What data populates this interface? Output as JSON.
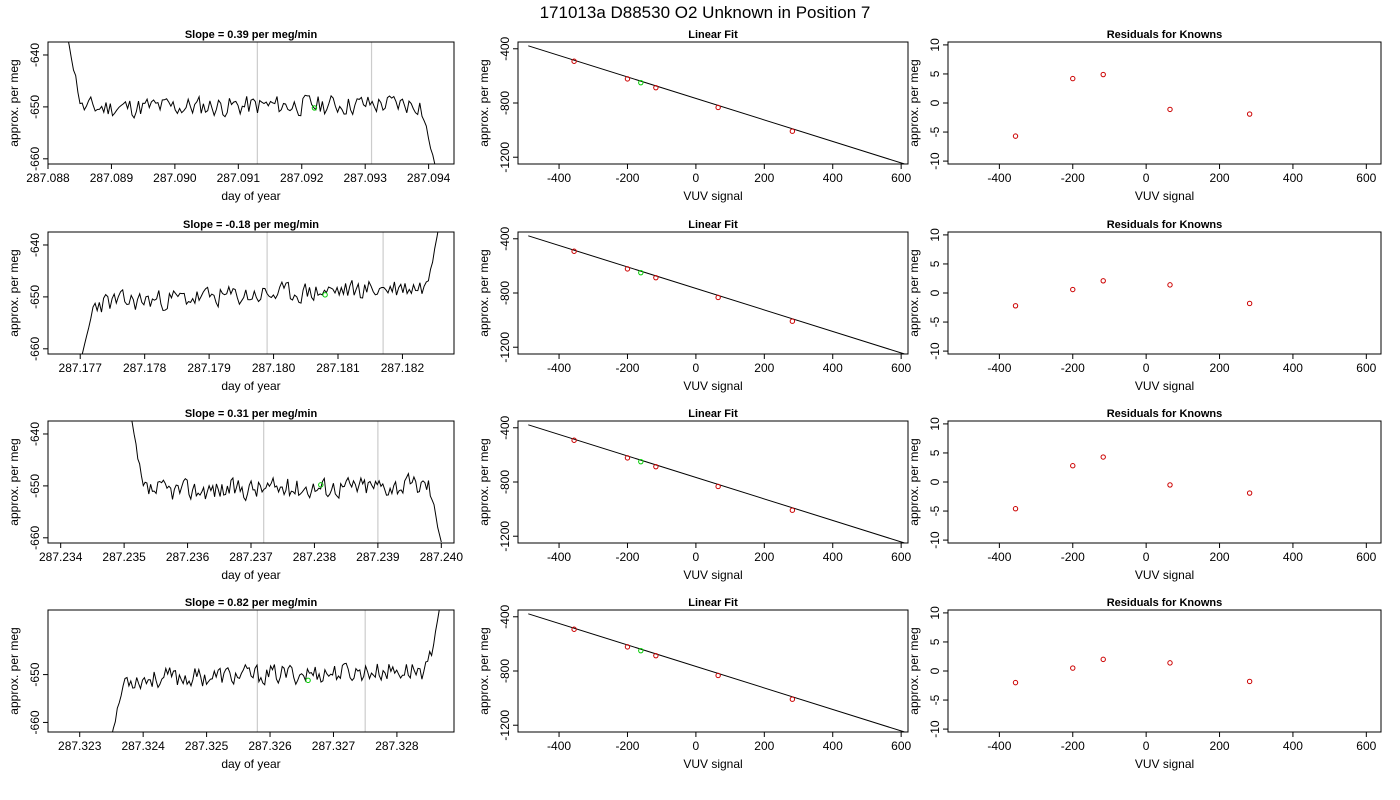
{
  "title": "171013a     D88530   O2 Unknown in Position  7",
  "colors": {
    "line": "#000000",
    "unknown_point": "#00cc00",
    "known_point": "#cc0000",
    "cycle_marker": "#cccccc"
  },
  "chart_data": [
    {
      "type": "line",
      "panel": "time-series-1",
      "title": "Slope =  0.39  per meg/min",
      "xlabel": "day of year",
      "ylabel": "approx. per meg",
      "xlim": [
        287.088,
        287.0944
      ],
      "ylim": [
        -661,
        -637.5
      ],
      "xticks": [
        "287.088",
        "287.089",
        "287.090",
        "287.091",
        "287.092",
        "287.093",
        "287.094"
      ],
      "yticks": [
        "-640",
        "-650",
        "-660"
      ],
      "cycle_markers_x": [
        287.0913,
        287.0931
      ],
      "unknown_point": {
        "x": 287.0922,
        "y": -650.2
      },
      "series": [
        {
          "x0": 287.0883,
          "x1": 287.0941,
          "start": -636,
          "end": -662,
          "level": -650.2,
          "noise": 2.4,
          "trend": 0.4,
          "seed": 11
        }
      ]
    },
    {
      "type": "scatter",
      "panel": "linear-fit-1",
      "title": "Linear Fit",
      "xlabel": "VUV signal",
      "ylabel": "approx. per meg",
      "xlim": [
        -520,
        620
      ],
      "ylim": [
        -1250,
        -350
      ],
      "xticks": [
        "-400",
        "-200",
        "0",
        "200",
        "400",
        "600"
      ],
      "yticks": [
        "-400",
        "-800",
        "-1200"
      ],
      "fit_line": {
        "x": [
          -490,
          610
        ],
        "y": [
          -378,
          -1250
        ]
      },
      "knowns": {
        "x": [
          -356,
          -200,
          -117,
          65,
          282
        ],
        "y": [
          -492,
          -622,
          -687,
          -833,
          -1008
        ]
      },
      "unknown": {
        "x": -161,
        "y": -650
      }
    },
    {
      "type": "scatter",
      "panel": "residuals-1",
      "title": "Residuals for Knowns",
      "xlabel": "VUV signal",
      "ylabel": "approx. per meg",
      "xlim": [
        -540,
        640
      ],
      "ylim": [
        -10.5,
        10.5
      ],
      "xticks": [
        "-400",
        "-200",
        "0",
        "200",
        "400",
        "600"
      ],
      "yticks": [
        "10",
        "5",
        "0",
        "-5",
        "-10"
      ],
      "x": [
        -356,
        -200,
        -117,
        65,
        282
      ],
      "y": [
        -5.7,
        4.2,
        4.9,
        -1.1,
        -1.9
      ]
    },
    {
      "type": "line",
      "panel": "time-series-2",
      "title": "Slope =  -0.18  per meg/min",
      "xlabel": "day of year",
      "ylabel": "approx. per meg",
      "xlim": [
        287.1765,
        287.1828
      ],
      "ylim": [
        -661,
        -637.5
      ],
      "xticks": [
        "287.177",
        "287.178",
        "287.179",
        "287.180",
        "287.181",
        "287.182"
      ],
      "yticks": [
        "-640",
        "-650",
        "-660"
      ],
      "cycle_markers_x": [
        287.1799,
        287.1817
      ],
      "unknown_point": {
        "x": 287.1808,
        "y": -649.6
      },
      "series": [
        {
          "x0": 287.177,
          "x1": 287.1826,
          "start": -663,
          "end": -637,
          "level": -651.2,
          "noise": 2.4,
          "trend": 1.6,
          "seed": 23
        }
      ]
    },
    {
      "type": "scatter",
      "panel": "linear-fit-2",
      "title": "Linear Fit",
      "xlabel": "VUV signal",
      "ylabel": "approx. per meg",
      "xlim": [
        -520,
        620
      ],
      "ylim": [
        -1250,
        -350
      ],
      "xticks": [
        "-400",
        "-200",
        "0",
        "200",
        "400",
        "600"
      ],
      "yticks": [
        "-400",
        "-800",
        "-1200"
      ],
      "fit_line": {
        "x": [
          -490,
          610
        ],
        "y": [
          -378,
          -1250
        ]
      },
      "knowns": {
        "x": [
          -356,
          -200,
          -117,
          65,
          282
        ],
        "y": [
          -492,
          -622,
          -687,
          -833,
          -1008
        ]
      },
      "unknown": {
        "x": -161,
        "y": -650
      }
    },
    {
      "type": "scatter",
      "panel": "residuals-2",
      "title": "Residuals for Knowns",
      "xlabel": "VUV signal",
      "ylabel": "approx. per meg",
      "xlim": [
        -540,
        640
      ],
      "ylim": [
        -10.5,
        10.5
      ],
      "xticks": [
        "-400",
        "-200",
        "0",
        "200",
        "400",
        "600"
      ],
      "yticks": [
        "10",
        "5",
        "0",
        "-5",
        "-10"
      ],
      "x": [
        -356,
        -200,
        -117,
        65,
        282
      ],
      "y": [
        -2.2,
        0.6,
        2.1,
        1.4,
        -1.8
      ]
    },
    {
      "type": "line",
      "panel": "time-series-3",
      "title": "Slope =  0.31  per meg/min",
      "xlabel": "day of year",
      "ylabel": "approx. per meg",
      "xlim": [
        287.2338,
        287.2402
      ],
      "ylim": [
        -661,
        -637.5
      ],
      "xticks": [
        "287.234",
        "287.235",
        "287.236",
        "287.237",
        "287.238",
        "287.239",
        "287.240"
      ],
      "yticks": [
        "-640",
        "-650",
        "-660"
      ],
      "cycle_markers_x": [
        287.2372,
        287.239
      ],
      "unknown_point": {
        "x": 287.2381,
        "y": -649.8
      },
      "series": [
        {
          "x0": 287.2351,
          "x1": 287.24,
          "start": -636,
          "end": -662,
          "level": -651.0,
          "noise": 2.4,
          "trend": 0.6,
          "seed": 37
        }
      ]
    },
    {
      "type": "scatter",
      "panel": "linear-fit-3",
      "title": "Linear Fit",
      "xlabel": "VUV signal",
      "ylabel": "approx. per meg",
      "xlim": [
        -520,
        620
      ],
      "ylim": [
        -1250,
        -350
      ],
      "xticks": [
        "-400",
        "-200",
        "0",
        "200",
        "400",
        "600"
      ],
      "yticks": [
        "-400",
        "-800",
        "-1200"
      ],
      "fit_line": {
        "x": [
          -490,
          610
        ],
        "y": [
          -378,
          -1250
        ]
      },
      "knowns": {
        "x": [
          -356,
          -200,
          -117,
          65,
          282
        ],
        "y": [
          -492,
          -622,
          -687,
          -833,
          -1008
        ]
      },
      "unknown": {
        "x": -161,
        "y": -650
      }
    },
    {
      "type": "scatter",
      "panel": "residuals-3",
      "title": "Residuals for Knowns",
      "xlabel": "VUV signal",
      "ylabel": "approx. per meg",
      "xlim": [
        -540,
        640
      ],
      "ylim": [
        -10.5,
        10.5
      ],
      "xticks": [
        "-400",
        "-200",
        "0",
        "200",
        "400",
        "600"
      ],
      "yticks": [
        "10",
        "5",
        "0",
        "-5",
        "-10"
      ],
      "x": [
        -356,
        -200,
        -117,
        65,
        282
      ],
      "y": [
        -4.6,
        2.8,
        4.3,
        -0.5,
        -1.9
      ]
    },
    {
      "type": "line",
      "panel": "time-series-4",
      "title": "Slope =  0.82  per meg/min",
      "xlabel": "day of year",
      "ylabel": "approx. per meg",
      "xlim": [
        287.3225,
        287.3289
      ],
      "ylim": [
        -662,
        -636.5
      ],
      "xticks": [
        "287.323",
        "287.324",
        "287.325",
        "287.326",
        "287.327",
        "287.328"
      ],
      "yticks": [
        "-650",
        "-660"
      ],
      "cycle_markers_x": [
        287.3258,
        287.3275
      ],
      "unknown_point": {
        "x": 287.3266,
        "y": -651.2
      },
      "series": [
        {
          "x0": 287.3235,
          "x1": 287.3287,
          "start": -663,
          "end": -636,
          "level": -651.0,
          "noise": 2.5,
          "trend": 1.0,
          "seed": 53
        }
      ]
    },
    {
      "type": "scatter",
      "panel": "linear-fit-4",
      "title": "Linear Fit",
      "xlabel": "VUV signal",
      "ylabel": "approx. per meg",
      "xlim": [
        -520,
        620
      ],
      "ylim": [
        -1250,
        -350
      ],
      "xticks": [
        "-400",
        "-200",
        "0",
        "200",
        "400",
        "600"
      ],
      "yticks": [
        "-400",
        "-800",
        "-1200"
      ],
      "fit_line": {
        "x": [
          -490,
          610
        ],
        "y": [
          -378,
          -1250
        ]
      },
      "knowns": {
        "x": [
          -356,
          -200,
          -117,
          65,
          282
        ],
        "y": [
          -492,
          -622,
          -687,
          -833,
          -1008
        ]
      },
      "unknown": {
        "x": -161,
        "y": -650
      }
    },
    {
      "type": "scatter",
      "panel": "residuals-4",
      "title": "Residuals for Knowns",
      "xlabel": "VUV signal",
      "ylabel": "approx. per meg",
      "xlim": [
        -540,
        640
      ],
      "ylim": [
        -10.5,
        10.5
      ],
      "xticks": [
        "-400",
        "-200",
        "0",
        "200",
        "400",
        "600"
      ],
      "yticks": [
        "10",
        "5",
        "0",
        "-5",
        "-10"
      ],
      "x": [
        -356,
        -200,
        -117,
        65,
        282
      ],
      "y": [
        -2.0,
        0.5,
        2.0,
        1.4,
        -1.8
      ]
    }
  ]
}
